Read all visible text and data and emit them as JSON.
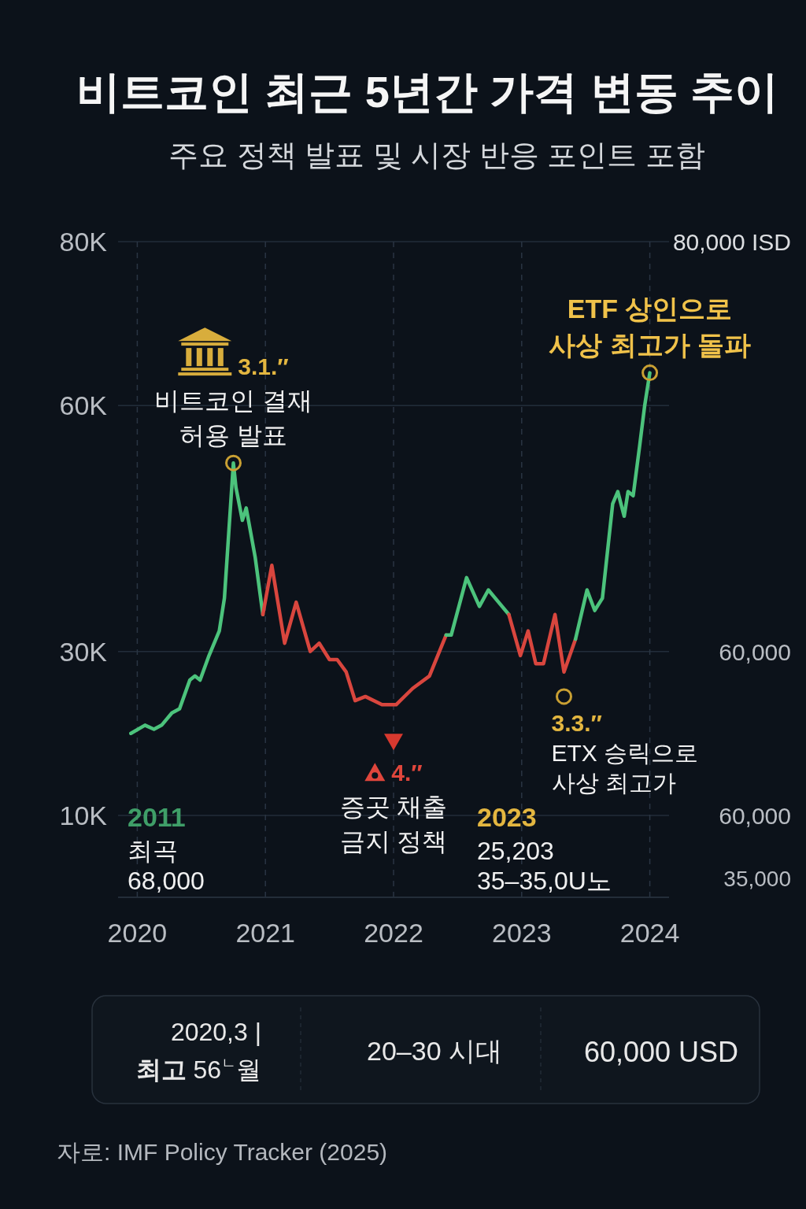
{
  "chart_data": {
    "type": "line",
    "title": "비트코인 최근 5년간 가격 변동 추이",
    "subtitle": "주요 정책 발표 및 시장 반응 포인트 포함",
    "series": [
      {
        "color": "#4cc37c",
        "x": [
          2019.95,
          2020.06,
          2020.13,
          2020.19,
          2020.27,
          2020.33,
          2020.41,
          2020.45,
          2020.49,
          2020.56,
          2020.64,
          2020.68,
          2020.75,
          2020.77,
          2020.82,
          2020.85,
          2020.92,
          2020.98
        ],
        "values": [
          20000,
          21000,
          20500,
          21000,
          22500,
          23000,
          26500,
          27000,
          26500,
          29500,
          32500,
          36500,
          53000,
          50000,
          46000,
          47500,
          41500,
          34500
        ]
      },
      {
        "color": "#d9463e",
        "x": [
          2020.98,
          2021.05,
          2021.15,
          2021.24,
          2021.35,
          2021.42,
          2021.5,
          2021.56,
          2021.63,
          2021.7,
          2021.78,
          2021.91,
          2022.02,
          2022.15,
          2022.28,
          2022.41
        ],
        "values": [
          34500,
          40500,
          31000,
          36000,
          30000,
          31000,
          29000,
          29000,
          27500,
          24000,
          24500,
          23500,
          23500,
          25500,
          27000,
          32000
        ]
      },
      {
        "color": "#4cc37c",
        "x": [
          2022.41,
          2022.45,
          2022.57,
          2022.67,
          2022.74,
          2022.9
        ],
        "values": [
          32000,
          32000,
          39000,
          35500,
          37500,
          34500
        ]
      },
      {
        "color": "#d9463e",
        "x": [
          2022.9,
          2022.99,
          2023.05,
          2023.11,
          2023.17,
          2023.26,
          2023.33,
          2023.42
        ],
        "values": [
          34500,
          29500,
          32500,
          28500,
          28500,
          34500,
          27500,
          31500
        ]
      },
      {
        "color": "#4cc37c",
        "x": [
          2023.42,
          2023.51,
          2023.57,
          2023.63,
          2023.71,
          2023.75,
          2023.8,
          2023.83,
          2023.87,
          2023.92,
          2023.96,
          2024.0
        ],
        "values": [
          31500,
          37500,
          35000,
          36500,
          48000,
          49500,
          46500,
          49500,
          49000,
          55000,
          60000,
          64000
        ]
      }
    ],
    "xlim": [
      2019.85,
      2024.15
    ],
    "xticks": [
      2020,
      2021,
      2022,
      2023,
      2024
    ],
    "ylim": [
      0,
      80000
    ],
    "yticks": [
      {
        "value": 0,
        "label": null
      },
      {
        "value": 10000,
        "label": "10K"
      },
      {
        "value": 30000,
        "label": "30K"
      },
      {
        "value": 60000,
        "label": "60K"
      },
      {
        "value": 80000,
        "label": "80K"
      }
    ],
    "grid": true,
    "annotations": [
      {
        "text": "3.1.″\n비트코인 결재\n허용 발표",
        "x": 2020.75,
        "y": 53000
      },
      {
        "text": "ETF 상인으로\n사상 최고가 돌파",
        "x": 2024.0,
        "y": 64000
      },
      {
        "text": "4.″\n증곳 채출\n금지 정책",
        "x": 2022.0,
        "y": 19000
      },
      {
        "text": "3.3.″\nETX 승릭으로\n사상 최고가",
        "x": 2023.33,
        "y": 24500
      },
      "2011\n최곡\n68,000",
      "2023\n25,203\n35–35,0U노",
      "80,000 ISD",
      "60,000",
      "60,000",
      "35,000",
      "2020,3 |\n**최고** 56$^{ㄴ}$월",
      "20–30 시대",
      "60,000 USD",
      "자로: IMF Policy Tracker (2025)"
    ]
  }
}
